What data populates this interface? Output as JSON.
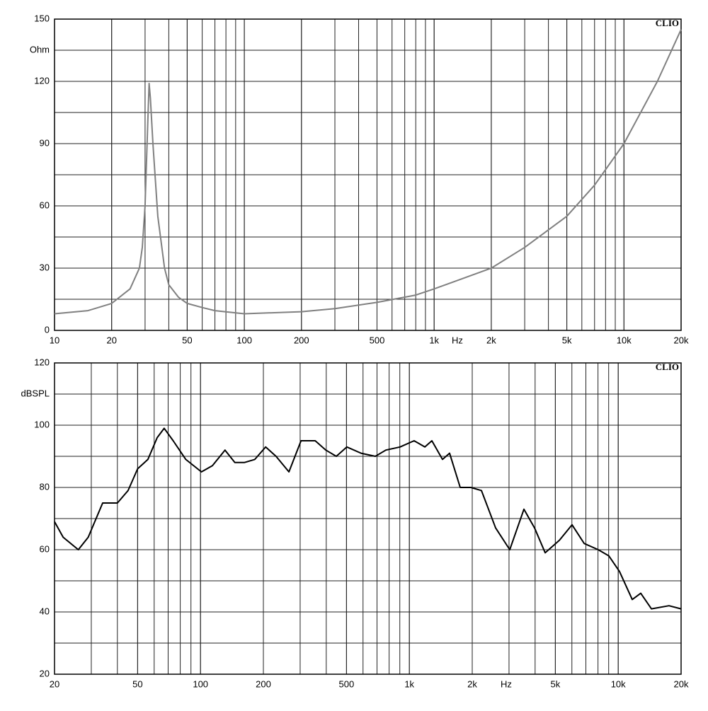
{
  "chart_data": [
    {
      "type": "line",
      "log_x": true,
      "minor_grid": true,
      "x_label": "Hz",
      "y_label": "Ohm",
      "annotation": "CLIO",
      "xlim": [
        10,
        20000
      ],
      "ylim": [
        0,
        150
      ],
      "xticks": [
        10,
        20,
        50,
        100,
        200,
        500,
        {
          "value": 1000,
          "label": "1k"
        },
        {
          "value": 2000,
          "label": "2k"
        },
        {
          "value": 5000,
          "label": "5k"
        },
        {
          "value": 10000,
          "label": "10k"
        },
        {
          "value": 20000,
          "label": "20k"
        }
      ],
      "yticks": [
        0,
        30,
        60,
        90,
        120,
        150
      ],
      "series": [
        {
          "color": "#808080",
          "x": [
            10,
            15,
            20,
            25,
            28,
            29,
            30,
            31,
            31.5,
            32,
            33,
            35,
            38,
            40,
            45,
            50,
            60,
            70,
            100,
            200,
            300,
            500,
            800,
            1000,
            2000,
            3000,
            5000,
            7000,
            10000,
            15000,
            20000
          ],
          "values": [
            8,
            9.5,
            13,
            20,
            30,
            40,
            60,
            100,
            119,
            112,
            90,
            55,
            30,
            22,
            16,
            13,
            11,
            9.5,
            8,
            9,
            10.5,
            13.5,
            17,
            20,
            30,
            40,
            55,
            70,
            90,
            120,
            145
          ]
        }
      ]
    },
    {
      "type": "line",
      "log_x": true,
      "minor_grid": true,
      "x_label": "Hz",
      "y_label": "dBSPL",
      "annotation": "CLIO",
      "xlim": [
        20,
        20000
      ],
      "ylim": [
        20,
        120
      ],
      "xticks": [
        20,
        50,
        100,
        200,
        500,
        {
          "value": 1000,
          "label": "1k"
        },
        {
          "value": 2000,
          "label": "2k"
        },
        {
          "value": 5000,
          "label": "5k"
        },
        {
          "value": 10000,
          "label": "10k"
        },
        {
          "value": 20000,
          "label": "20k"
        }
      ],
      "yticks": [
        20,
        40,
        60,
        80,
        100,
        120
      ],
      "series": [
        {
          "color": "#000000",
          "x": [
            20,
            22,
            26,
            29,
            34,
            40,
            45,
            50,
            56,
            62,
            67,
            74,
            85,
            101,
            114,
            131,
            146,
            162,
            182,
            205,
            230,
            265,
            303,
            354,
            398,
            447,
            502,
            587,
            687,
            772,
            902,
            1054,
            1186,
            1282,
            1441,
            1558,
            1752,
            1969,
            2214,
            2588,
            3025,
            3536,
            3975,
            4468,
            5224,
            6012,
            6868,
            8020,
            9020,
            10140,
            11670,
            12820,
            14420,
            17500,
            20000
          ],
          "values": [
            69,
            64,
            60,
            64,
            75,
            75,
            79,
            86,
            89,
            96,
            99,
            95,
            89,
            85,
            87,
            92,
            88,
            88,
            89,
            93,
            90,
            85,
            95,
            95,
            92,
            90,
            93,
            91,
            90,
            92,
            93,
            95,
            93,
            95,
            89,
            91,
            80,
            80,
            79,
            67,
            60,
            73,
            67,
            59,
            63,
            68,
            62,
            60,
            58,
            53,
            44,
            46,
            41,
            42,
            41
          ]
        }
      ]
    }
  ]
}
